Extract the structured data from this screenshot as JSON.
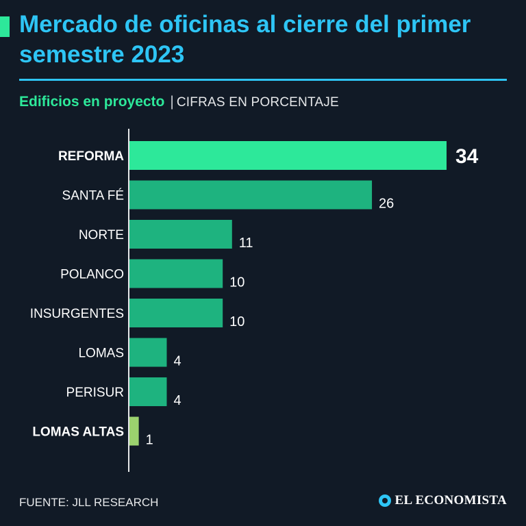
{
  "header": {
    "title": "Mercado de oficinas al cierre del primer semestre 2023",
    "subtitle": "Edificios en proyecto",
    "separator": "|",
    "unit": "CIFRAS EN PORCENTAJE"
  },
  "chart_data": {
    "type": "bar",
    "orientation": "horizontal",
    "title": "Edificios en proyecto",
    "ylabel": "CIFRAS EN PORCENTAJE",
    "categories": [
      "REFORMA",
      "SANTA FÉ",
      "NORTE",
      "POLANCO",
      "INSURGENTES",
      "LOMAS",
      "PERISUR",
      "LOMAS ALTAS"
    ],
    "values": [
      34,
      26,
      11,
      10,
      10,
      4,
      4,
      1
    ],
    "highlight": [
      "max",
      "min"
    ],
    "xlim": [
      0,
      34
    ],
    "colors": {
      "max": "#2de89a",
      "default": "#1eb37f",
      "min": "#9bd26e"
    }
  },
  "footer": {
    "source": "FUENTE: JLL RESEARCH",
    "logo": "EL ECONOMISTA"
  }
}
